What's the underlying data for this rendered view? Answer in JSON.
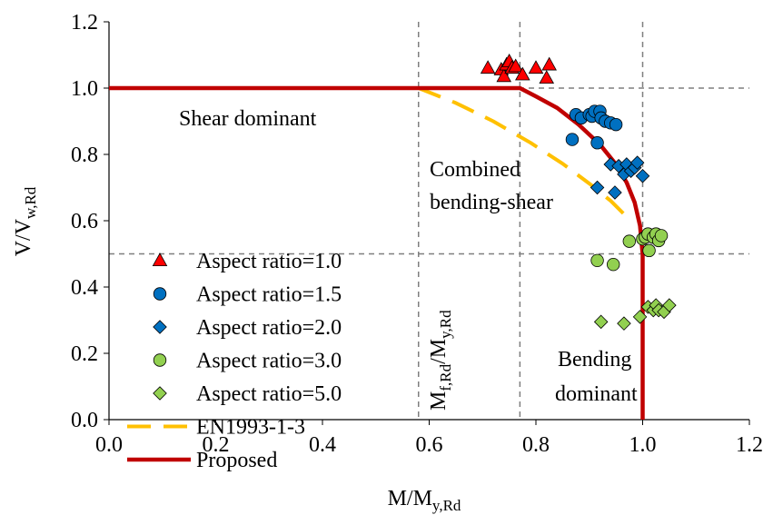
{
  "chart_data": {
    "type": "scatter",
    "xlabel": {
      "main": "M/M",
      "sub": "y,Rd"
    },
    "ylabel": {
      "main": "V/V",
      "sub": "w,Rd"
    },
    "xlim": [
      0,
      1.2
    ],
    "ylim": [
      0,
      1.2
    ],
    "xticks": [
      "0.0",
      "0.2",
      "0.4",
      "0.6",
      "0.8",
      "1.0",
      "1.2"
    ],
    "yticks": [
      "0.0",
      "0.2",
      "0.4",
      "0.6",
      "0.8",
      "1.0",
      "1.2"
    ],
    "grid": false,
    "reference_lines": {
      "vertical": [
        0.58,
        0.77,
        1.0
      ],
      "horizontal": [
        0.5,
        1.0
      ]
    },
    "annotations": {
      "shear": "Shear dominant",
      "combined_1": "Combined",
      "combined_2": "bending-shear",
      "bending_1": "Bending",
      "bending_2": "dominant",
      "mf_main": "M",
      "mf_sub1": "f,Rd",
      "mf_mid": "/M",
      "mf_sub2": "y,Rd"
    },
    "series": [
      {
        "name": "Aspect ratio=1.0",
        "marker": "triangle",
        "color": "#ff0000",
        "points": [
          [
            0.71,
            1.06
          ],
          [
            0.735,
            1.055
          ],
          [
            0.74,
            1.035
          ],
          [
            0.745,
            1.07
          ],
          [
            0.75,
            1.08
          ],
          [
            0.755,
            1.06
          ],
          [
            0.762,
            1.065
          ],
          [
            0.775,
            1.04
          ],
          [
            0.8,
            1.06
          ],
          [
            0.82,
            1.03
          ],
          [
            0.825,
            1.07
          ]
        ]
      },
      {
        "name": "Aspect ratio=1.5",
        "marker": "circle",
        "color": "#0070c0",
        "points": [
          [
            0.868,
            0.845
          ],
          [
            0.875,
            0.92
          ],
          [
            0.885,
            0.91
          ],
          [
            0.9,
            0.92
          ],
          [
            0.905,
            0.915
          ],
          [
            0.91,
            0.93
          ],
          [
            0.915,
            0.835
          ],
          [
            0.92,
            0.93
          ],
          [
            0.922,
            0.91
          ],
          [
            0.93,
            0.9
          ],
          [
            0.94,
            0.895
          ],
          [
            0.95,
            0.89
          ]
        ]
      },
      {
        "name": "Aspect ratio=2.0",
        "marker": "diamond",
        "color": "#0070c0",
        "points": [
          [
            0.915,
            0.7
          ],
          [
            0.94,
            0.77
          ],
          [
            0.948,
            0.685
          ],
          [
            0.955,
            0.765
          ],
          [
            0.965,
            0.74
          ],
          [
            0.97,
            0.77
          ],
          [
            0.978,
            0.75
          ],
          [
            0.985,
            0.76
          ],
          [
            0.99,
            0.775
          ],
          [
            1.0,
            0.735
          ]
        ]
      },
      {
        "name": "Aspect ratio=3.0",
        "marker": "circle",
        "color": "#92d050",
        "points": [
          [
            0.915,
            0.48
          ],
          [
            0.945,
            0.468
          ],
          [
            0.975,
            0.538
          ],
          [
            1.0,
            0.545
          ],
          [
            1.005,
            0.55
          ],
          [
            1.01,
            0.56
          ],
          [
            1.012,
            0.51
          ],
          [
            1.02,
            0.55
          ],
          [
            1.025,
            0.56
          ],
          [
            1.03,
            0.54
          ],
          [
            1.035,
            0.555
          ]
        ]
      },
      {
        "name": "Aspect ratio=5.0",
        "marker": "diamond",
        "color": "#92d050",
        "points": [
          [
            0.922,
            0.295
          ],
          [
            0.965,
            0.29
          ],
          [
            0.995,
            0.31
          ],
          [
            1.01,
            0.34
          ],
          [
            1.02,
            0.33
          ],
          [
            1.025,
            0.345
          ],
          [
            1.03,
            0.33
          ],
          [
            1.04,
            0.325
          ],
          [
            1.05,
            0.345
          ]
        ]
      },
      {
        "name": "EN1993-1-3",
        "marker": "none",
        "line": "dashed",
        "color": "#ffc000",
        "points": [
          [
            0.58,
            1.0
          ],
          [
            0.65,
            0.955
          ],
          [
            0.72,
            0.9
          ],
          [
            0.79,
            0.835
          ],
          [
            0.85,
            0.772
          ],
          [
            0.9,
            0.712
          ],
          [
            0.94,
            0.66
          ],
          [
            0.97,
            0.612
          ]
        ]
      },
      {
        "name": "Proposed",
        "marker": "none",
        "line": "solid",
        "color": "#c00000",
        "points": [
          [
            0,
            1.0
          ],
          [
            0.77,
            1.0
          ],
          [
            0.8,
            0.975
          ],
          [
            0.84,
            0.94
          ],
          [
            0.88,
            0.89
          ],
          [
            0.92,
            0.83
          ],
          [
            0.95,
            0.77
          ],
          [
            0.97,
            0.715
          ],
          [
            0.985,
            0.655
          ],
          [
            0.995,
            0.585
          ],
          [
            1.0,
            0.5
          ],
          [
            1.0,
            0.0
          ]
        ]
      }
    ]
  }
}
